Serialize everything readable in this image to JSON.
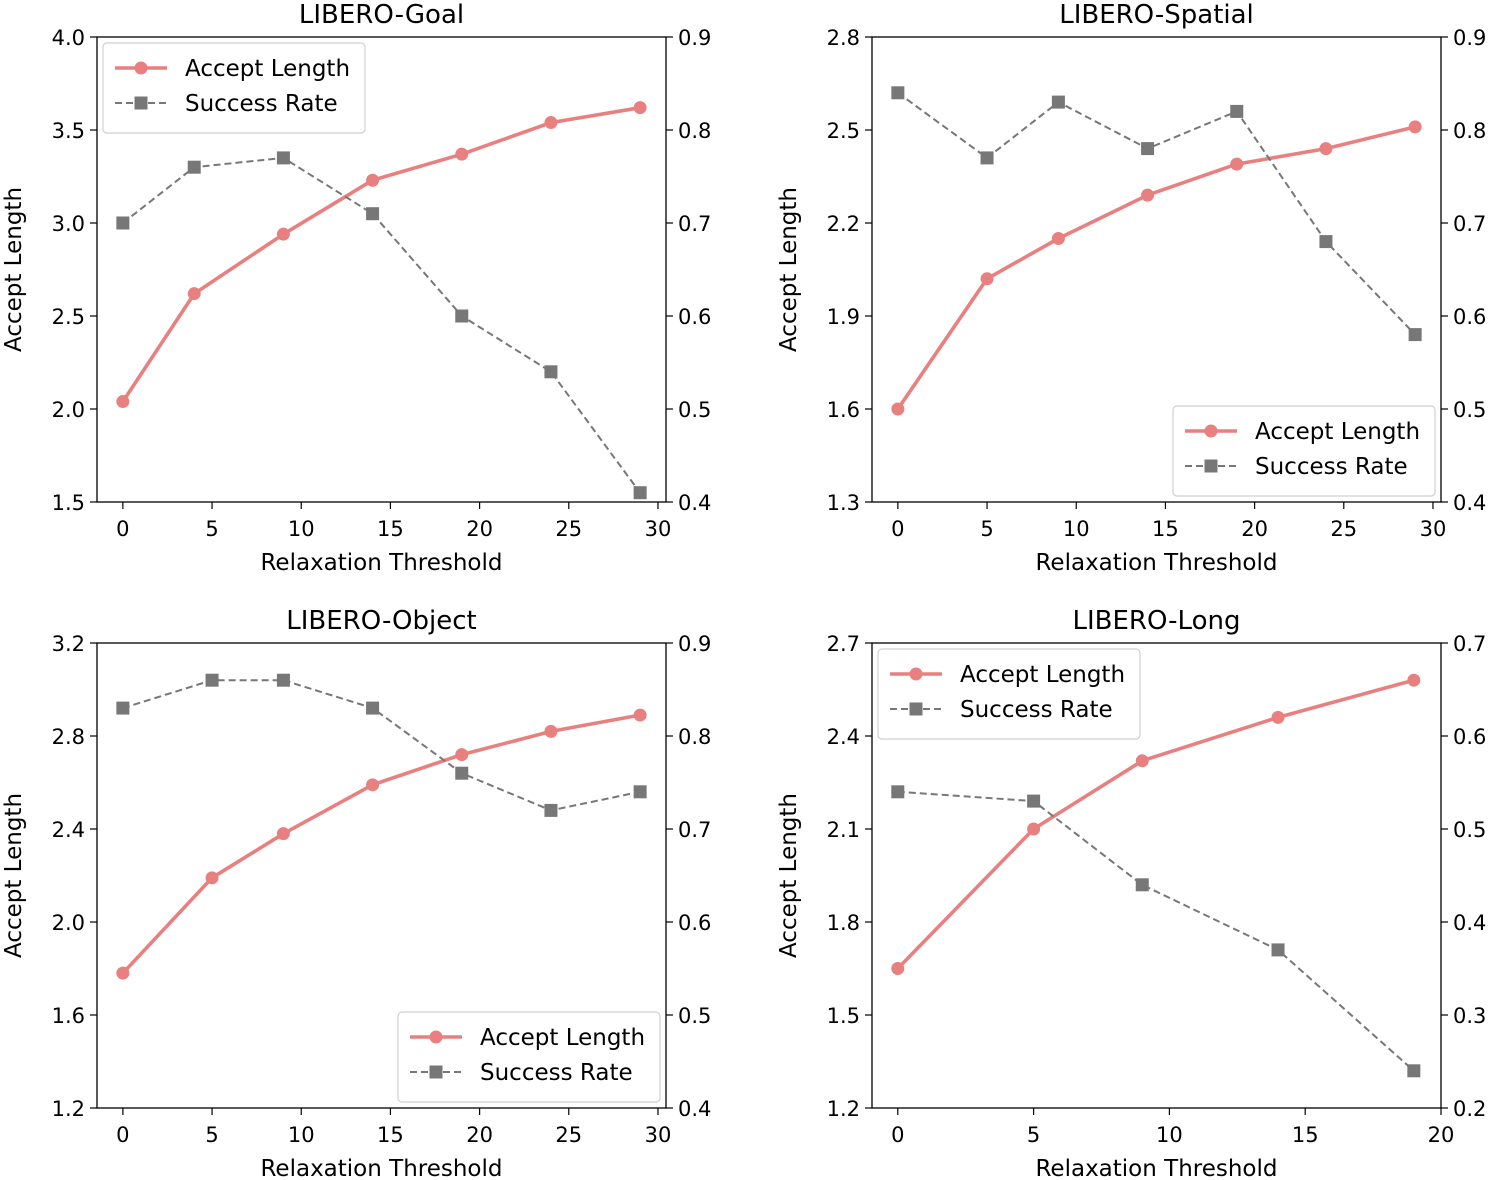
{
  "chart_data": [
    {
      "type": "line",
      "title": "LIBERO-Goal",
      "xlabel": "Relaxation Threshold",
      "ylabel": "Accept Length",
      "x": [
        0,
        4,
        9,
        14,
        19,
        24,
        29
      ],
      "xlim": [
        -1.45,
        30.45
      ],
      "xticks": [
        0,
        5,
        10,
        15,
        20,
        25,
        30
      ],
      "ylim": [
        1.5,
        4.0
      ],
      "yticks": [
        "1.5",
        "2.0",
        "2.5",
        "3.0",
        "3.5",
        "4.0"
      ],
      "y2lim": [
        0.4,
        0.9
      ],
      "y2ticks": [
        "0.4",
        "0.5",
        "0.6",
        "0.7",
        "0.8",
        "0.9"
      ],
      "legend_loc": "upper-left",
      "series": [
        {
          "name": "Accept Length",
          "axis": "left",
          "style": "solid-circle",
          "color": "#e88080",
          "values": [
            2.04,
            2.62,
            2.94,
            3.23,
            3.37,
            3.54,
            3.62
          ]
        },
        {
          "name": "Success Rate",
          "axis": "right",
          "style": "dashed-square",
          "color": "#777777",
          "values": [
            0.7,
            0.76,
            0.77,
            0.71,
            0.6,
            0.54,
            0.41
          ]
        }
      ]
    },
    {
      "type": "line",
      "title": "LIBERO-Spatial",
      "xlabel": "Relaxation Threshold",
      "ylabel": "Accept Length",
      "x": [
        0,
        5,
        9,
        14,
        19,
        24,
        29
      ],
      "xlim": [
        -1.45,
        30.45
      ],
      "xticks": [
        0,
        5,
        10,
        15,
        20,
        25,
        30
      ],
      "ylim": [
        1.3,
        2.8
      ],
      "yticks": [
        "1.3",
        "1.6",
        "1.9",
        "2.2",
        "2.5",
        "2.8"
      ],
      "y2lim": [
        0.4,
        0.9
      ],
      "y2ticks": [
        "0.4",
        "0.5",
        "0.6",
        "0.7",
        "0.8",
        "0.9"
      ],
      "legend_loc": "lower-right",
      "series": [
        {
          "name": "Accept Length",
          "axis": "left",
          "style": "solid-circle",
          "color": "#e88080",
          "values": [
            1.6,
            2.02,
            2.15,
            2.29,
            2.39,
            2.44,
            2.51
          ]
        },
        {
          "name": "Success Rate",
          "axis": "right",
          "style": "dashed-square",
          "color": "#777777",
          "values": [
            0.84,
            0.77,
            0.83,
            0.78,
            0.82,
            0.68,
            0.58
          ]
        }
      ]
    },
    {
      "type": "line",
      "title": "LIBERO-Object",
      "xlabel": "Relaxation Threshold",
      "ylabel": "Accept Length",
      "x": [
        0,
        5,
        9,
        14,
        19,
        24,
        29
      ],
      "xlim": [
        -1.45,
        30.45
      ],
      "xticks": [
        0,
        5,
        10,
        15,
        20,
        25,
        30
      ],
      "ylim": [
        1.2,
        3.2
      ],
      "yticks": [
        "1.2",
        "1.6",
        "2.0",
        "2.4",
        "2.8",
        "3.2"
      ],
      "y2lim": [
        0.4,
        0.9
      ],
      "y2ticks": [
        "0.4",
        "0.5",
        "0.6",
        "0.7",
        "0.8",
        "0.9"
      ],
      "legend_loc": "lower-right",
      "series": [
        {
          "name": "Accept Length",
          "axis": "left",
          "style": "solid-circle",
          "color": "#e88080",
          "values": [
            1.78,
            2.19,
            2.38,
            2.59,
            2.72,
            2.82,
            2.89
          ]
        },
        {
          "name": "Success Rate",
          "axis": "right",
          "style": "dashed-square",
          "color": "#777777",
          "values": [
            0.83,
            0.86,
            0.86,
            0.83,
            0.76,
            0.72,
            0.74
          ]
        }
      ]
    },
    {
      "type": "line",
      "title": "LIBERO-Long",
      "xlabel": "Relaxation Threshold",
      "ylabel": "Accept Length",
      "x": [
        0,
        5,
        9,
        14,
        19
      ],
      "xlim": [
        -0.95,
        20.0
      ],
      "xticks": [
        0,
        5,
        10,
        15,
        20
      ],
      "ylim": [
        1.2,
        2.7
      ],
      "yticks": [
        "1.2",
        "1.5",
        "1.8",
        "2.1",
        "2.4",
        "2.7"
      ],
      "y2lim": [
        0.2,
        0.7
      ],
      "y2ticks": [
        "0.2",
        "0.3",
        "0.4",
        "0.5",
        "0.6",
        "0.7"
      ],
      "legend_loc": "upper-left",
      "series": [
        {
          "name": "Accept Length",
          "axis": "left",
          "style": "solid-circle",
          "color": "#e88080",
          "values": [
            1.65,
            2.1,
            2.32,
            2.46,
            2.58
          ]
        },
        {
          "name": "Success Rate",
          "axis": "right",
          "style": "dashed-square",
          "color": "#777777",
          "values": [
            0.54,
            0.53,
            0.44,
            0.37,
            0.24
          ]
        }
      ]
    }
  ]
}
